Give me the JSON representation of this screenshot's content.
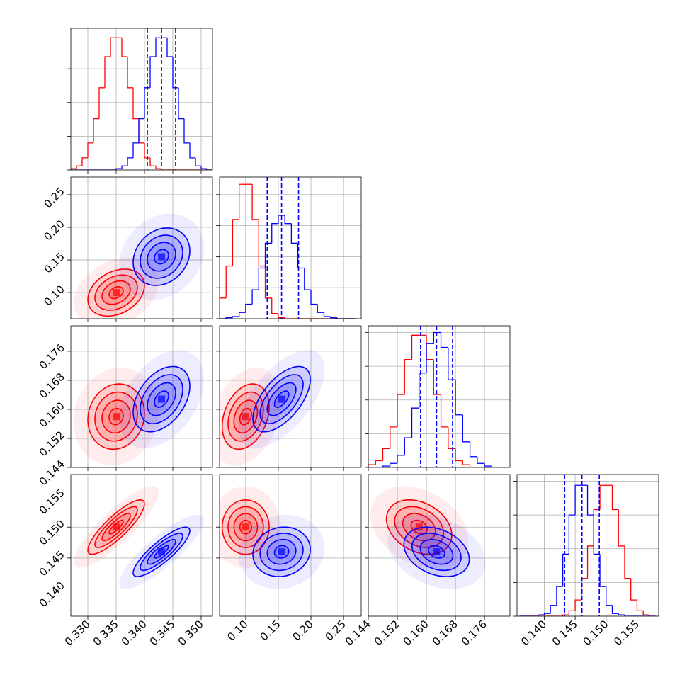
{
  "chart_data": {
    "type": "corner",
    "contour_levels": [
      0.5,
      1,
      1.5,
      2
    ],
    "halo_level": 3,
    "grid": true,
    "quantile_color": "#0000ff",
    "parameters": [
      {
        "lim": [
          0.327,
          0.352
        ],
        "ticks": [
          {
            "value": 0.33,
            "label": "0.330"
          },
          0.335,
          {
            "value": 0.34,
            "label": "0.340"
          },
          0.345,
          {
            "value": 0.35,
            "label": "0.350"
          }
        ],
        "bins": [
          0.327,
          0.328,
          0.329,
          0.33,
          0.331,
          0.332,
          0.333,
          0.334,
          0.335,
          0.336,
          0.337,
          0.338,
          0.339,
          0.34,
          0.341,
          0.342,
          0.343,
          0.344,
          0.345,
          0.346,
          0.347,
          0.348,
          0.349,
          0.35,
          0.351,
          0.352
        ],
        "hist_ylim": [
          0,
          105
        ],
        "hist_yticks": [
          0,
          25,
          50,
          75,
          100
        ],
        "quantiles": [
          0.3405,
          0.343,
          0.3455
        ]
      },
      {
        "lim": [
          0.06,
          0.277
        ],
        "ticks": [
          {
            "value": 0.1,
            "label": "0.10"
          },
          0.15,
          {
            "value": 0.2,
            "label": "0.20"
          },
          0.25
        ],
        "bins": [
          0.06,
          0.07,
          0.08,
          0.09,
          0.1,
          0.11,
          0.12,
          0.13,
          0.14,
          0.15,
          0.16,
          0.17,
          0.18,
          0.19,
          0.2,
          0.21,
          0.22,
          0.23,
          0.24,
          0.25,
          0.26,
          0.27
        ],
        "hist_ylim": [
          0,
          137
        ],
        "hist_yticks": [
          0,
          30,
          60,
          90,
          120
        ],
        "quantiles": [
          0.133,
          0.155,
          0.181
        ]
      },
      {
        "lim": [
          0.144,
          0.183
        ],
        "ticks": [
          0.144,
          0.152,
          {
            "value": 0.16,
            "label": "0.160"
          },
          0.168,
          0.176
        ],
        "bins": [
          0.144,
          0.146,
          0.148,
          0.15,
          0.152,
          0.154,
          0.156,
          0.158,
          0.16,
          0.162,
          0.164,
          0.166,
          0.168,
          0.17,
          0.172,
          0.174,
          0.176,
          0.178,
          0.18,
          0.182
        ],
        "hist_ylim": [
          0,
          105
        ],
        "hist_yticks": [
          0,
          25,
          50,
          75,
          100
        ],
        "quantiles": [
          0.1584,
          0.1628,
          0.1672
        ]
      },
      {
        "lim": [
          0.1356,
          0.1585
        ],
        "ticks": [
          {
            "value": 0.14,
            "label": "0.140"
          },
          0.145,
          {
            "value": 0.15,
            "label": "0.150"
          },
          0.155
        ],
        "bins": [
          0.136,
          0.137,
          0.138,
          0.139,
          0.14,
          0.141,
          0.142,
          0.143,
          0.144,
          0.145,
          0.146,
          0.147,
          0.148,
          0.149,
          0.15,
          0.151,
          0.152,
          0.153,
          0.154,
          0.155,
          0.156,
          0.157,
          0.158
        ],
        "hist_ylim": [
          0,
          105
        ],
        "hist_yticks": [
          0,
          25,
          50,
          75,
          100
        ],
        "quantiles": [
          0.1433,
          0.1461,
          0.1489
        ]
      }
    ],
    "series": [
      {
        "color": "#ff0000",
        "means": [
          0.335,
          0.1,
          0.158,
          0.15
        ],
        "stds": [
          0.0025,
          0.018,
          0.0045,
          0.0022
        ],
        "corr": [
          [
            1,
            0.3,
            0.1,
            0.85
          ],
          [
            0.3,
            1,
            0.3,
            0.0
          ],
          [
            0.1,
            0.3,
            1,
            -0.3
          ],
          [
            0.85,
            0.0,
            -0.3,
            1
          ]
        ],
        "hist": [
          [
            1,
            3,
            9,
            20,
            38,
            61,
            84,
            98,
            98,
            84,
            61,
            38,
            20,
            9,
            3,
            1,
            0,
            0,
            0,
            0,
            0,
            0,
            0,
            0,
            0
          ],
          [
            20,
            51,
            96,
            130,
            130,
            96,
            51,
            20,
            5,
            1,
            0,
            0,
            0,
            0,
            0,
            0,
            0,
            0,
            0,
            0,
            0
          ],
          [
            2,
            5,
            14,
            30,
            54,
            80,
            98,
            98,
            80,
            54,
            30,
            14,
            5,
            2,
            0,
            0,
            0,
            0,
            0
          ],
          [
            0,
            0,
            0,
            0,
            0,
            0,
            0,
            1,
            4,
            12,
            28,
            52,
            79,
            97,
            97,
            79,
            52,
            28,
            12,
            4,
            1,
            0
          ]
        ]
      },
      {
        "color": "#0000ff",
        "means": [
          0.343,
          0.155,
          0.1628,
          0.146
        ],
        "stds": [
          0.0025,
          0.022,
          0.0045,
          0.002
        ],
        "corr": [
          [
            1,
            0.2,
            0.4,
            0.85
          ],
          [
            0.2,
            1,
            0.6,
            0.1
          ],
          [
            0.4,
            0.6,
            1,
            -0.3
          ],
          [
            0.85,
            0.1,
            -0.3,
            1
          ]
        ],
        "hist": [
          [
            0,
            0,
            0,
            0,
            0,
            0,
            0,
            0,
            1,
            3,
            9,
            20,
            38,
            61,
            84,
            98,
            98,
            84,
            61,
            38,
            20,
            9,
            3,
            1,
            0
          ],
          [
            0,
            1,
            2,
            6,
            14,
            28,
            49,
            73,
            92,
            100,
            92,
            73,
            49,
            28,
            14,
            6,
            2,
            1,
            0,
            0,
            0
          ],
          [
            0,
            0,
            1,
            3,
            9,
            22,
            44,
            70,
            92,
            100,
            89,
            65,
            39,
            19,
            8,
            3,
            1,
            0,
            0
          ],
          [
            0,
            0,
            0,
            1,
            2,
            8,
            22,
            46,
            75,
            97,
            97,
            75,
            46,
            22,
            8,
            2,
            1,
            0,
            0,
            0,
            0,
            0
          ]
        ]
      }
    ]
  }
}
